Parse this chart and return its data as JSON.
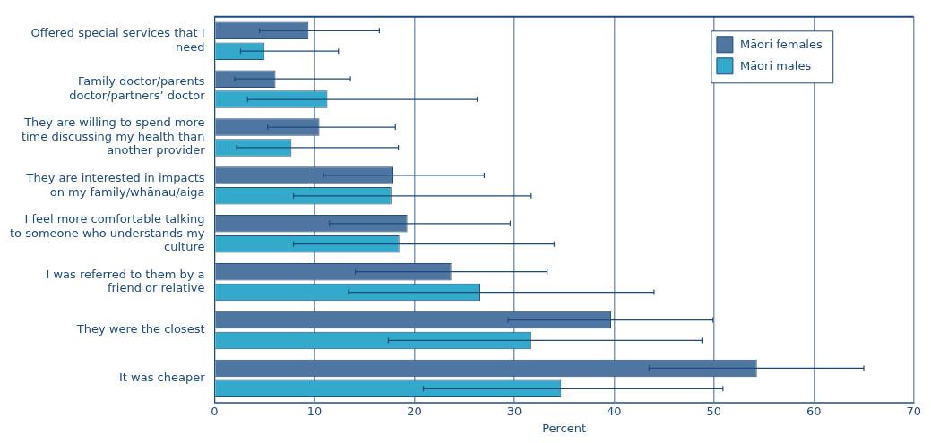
{
  "chart_data": {
    "type": "bar",
    "orientation": "horizontal",
    "xlabel": "Percent",
    "categories": [
      "Offered special services that I need",
      "Family doctor/parents doctor/partners’ doctor",
      "They are willing to spend more time discussing my health than another provider",
      "They are interested in impacts on my family/whānau/aiga",
      "I feel more comfortable talking to someone who understands my culture",
      "I was referred to them by a friend or relative",
      "They were the closest",
      "It was cheaper"
    ],
    "series": [
      {
        "name": "Māori females",
        "color": "#4e76a0",
        "values": [
          9.4,
          6.1,
          10.5,
          17.9,
          19.3,
          23.7,
          39.7,
          54.3
        ],
        "errors": [
          [
            4.5,
            16.5
          ],
          [
            2.0,
            13.6
          ],
          [
            5.3,
            18.1
          ],
          [
            10.9,
            27.0
          ],
          [
            11.5,
            29.6
          ],
          [
            14.1,
            33.3
          ],
          [
            29.4,
            49.9
          ],
          [
            43.5,
            65.0
          ]
        ]
      },
      {
        "name": "Māori males",
        "color": "#33a9cb",
        "values": [
          5.0,
          11.3,
          7.7,
          17.7,
          18.5,
          26.6,
          31.7,
          34.7
        ],
        "errors": [
          [
            2.6,
            12.4
          ],
          [
            3.3,
            26.3
          ],
          [
            2.2,
            18.4
          ],
          [
            7.9,
            31.7
          ],
          [
            7.9,
            34.0
          ],
          [
            13.4,
            44.0
          ],
          [
            17.4,
            48.8
          ],
          [
            20.9,
            50.9
          ]
        ]
      }
    ],
    "xlim": [
      0,
      70
    ],
    "xticks": [
      0,
      10,
      20,
      30,
      40,
      50,
      60,
      70
    ],
    "grid": "x",
    "legend": "top right"
  }
}
